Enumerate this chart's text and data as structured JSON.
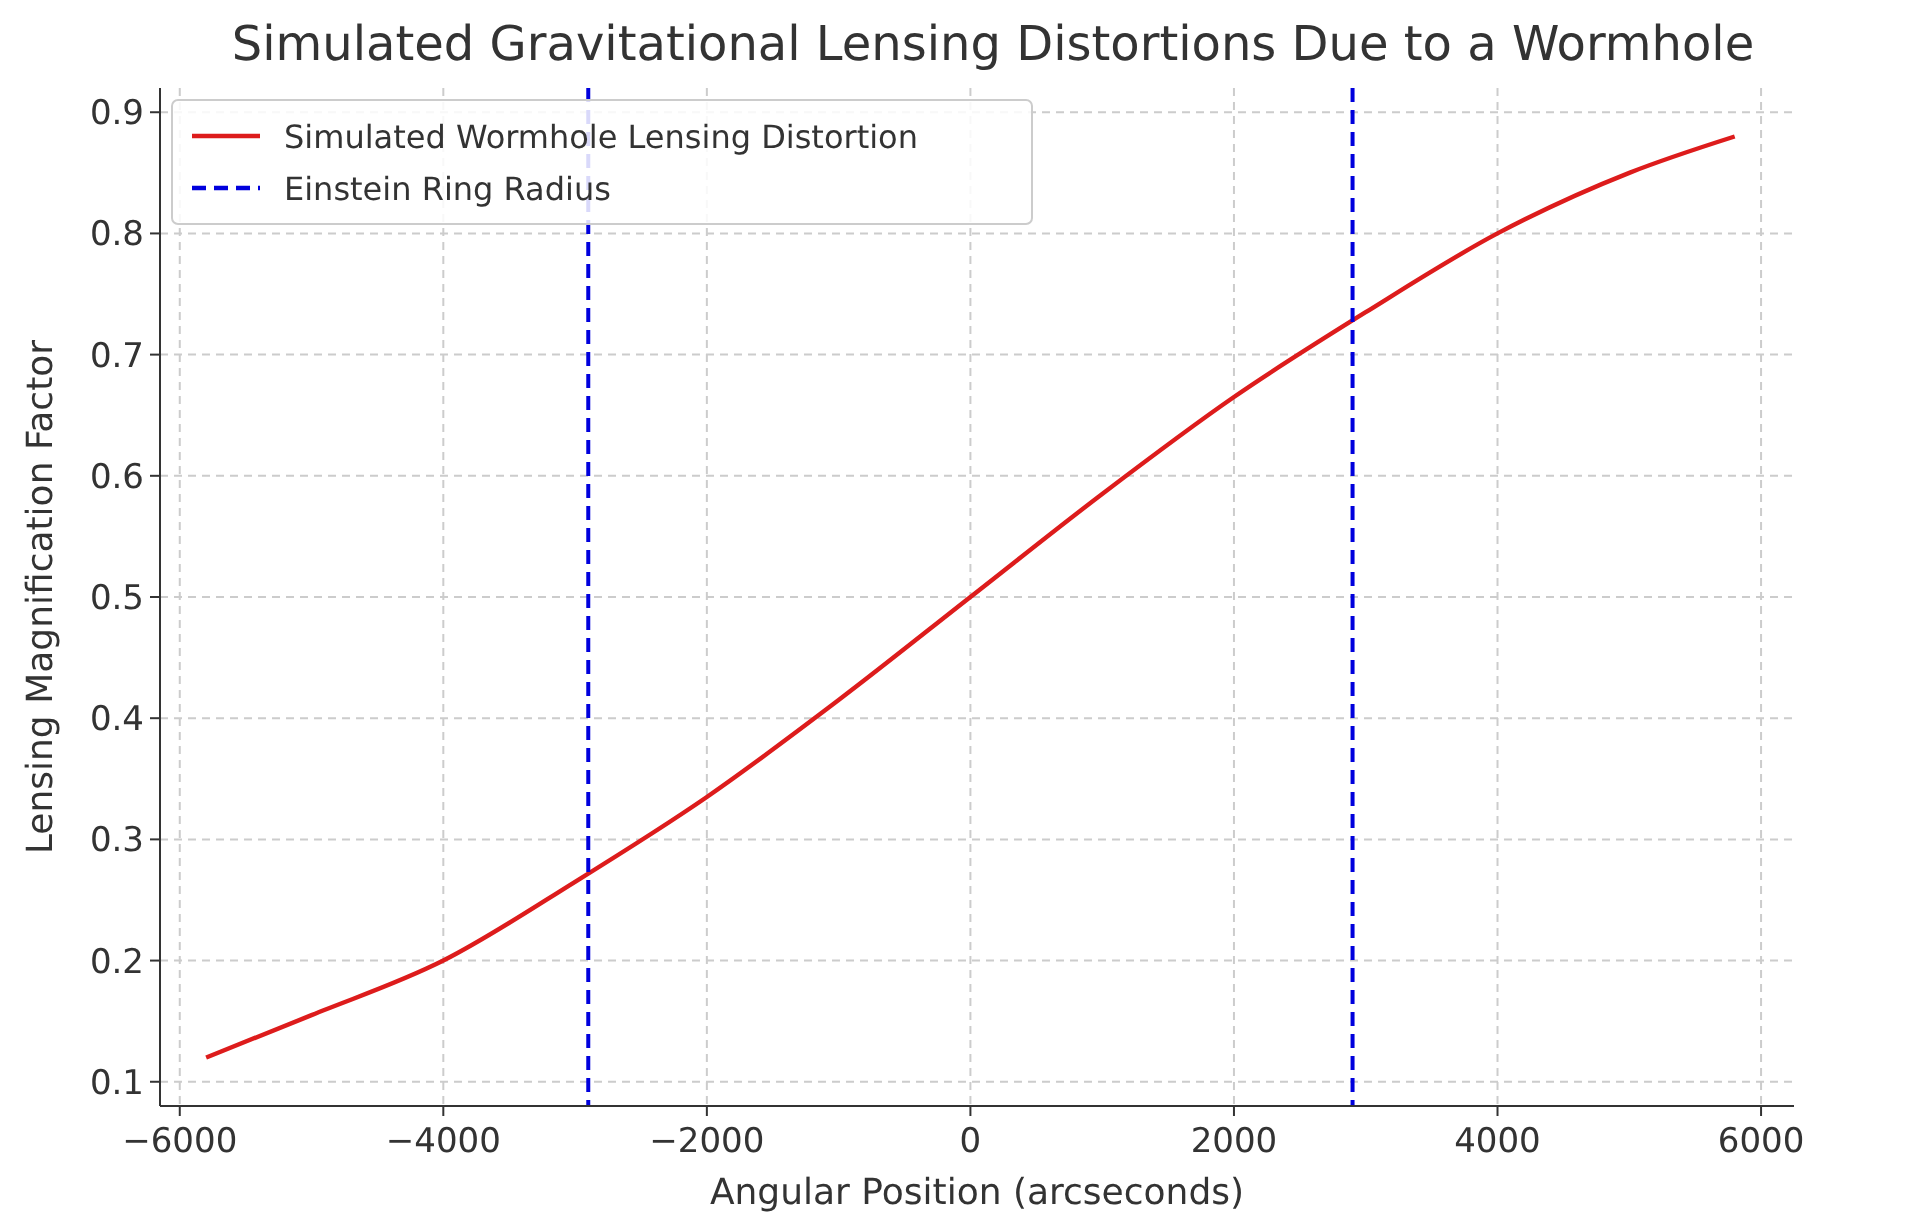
{
  "chart_data": {
    "type": "line",
    "title": "Simulated Gravitational Lensing Distortions Due to a Wormhole",
    "xlabel": "Angular Position (arcseconds)",
    "ylabel": "Lensing Magnification Factor",
    "x": [
      -5800,
      -5000,
      -4000,
      -3000,
      -2000,
      -1000,
      0,
      1000,
      2000,
      3000,
      4000,
      5000,
      5800
    ],
    "series": [
      {
        "name": "Simulated Wormhole Lensing Distortion",
        "color": "#dd1c1c",
        "values": [
          0.12,
          0.155,
          0.2,
          0.265,
          0.335,
          0.415,
          0.5,
          0.585,
          0.665,
          0.735,
          0.8,
          0.85,
          0.88
        ]
      }
    ],
    "ref_lines": [
      {
        "axis": "x",
        "value": -2900,
        "label": "Einstein Ring Radius",
        "color": "#0000dd",
        "line_style": "dashed"
      },
      {
        "axis": "x",
        "value": 2900,
        "color": "#0000dd",
        "line_style": "dashed"
      }
    ],
    "xlim": [
      -6150,
      6250
    ],
    "xticks": [
      {
        "value": -6000,
        "label": "−6000"
      },
      {
        "value": -4000,
        "label": "−4000"
      },
      {
        "value": -2000,
        "label": "−2000"
      },
      0,
      2000,
      4000,
      6000
    ],
    "ylim": [
      0.08,
      0.92
    ],
    "yticks": [
      0.1,
      0.2,
      0.3,
      0.4,
      0.5,
      0.6,
      0.7,
      0.8,
      0.9
    ],
    "grid": true,
    "legend": "top left",
    "line_style": "solid"
  }
}
